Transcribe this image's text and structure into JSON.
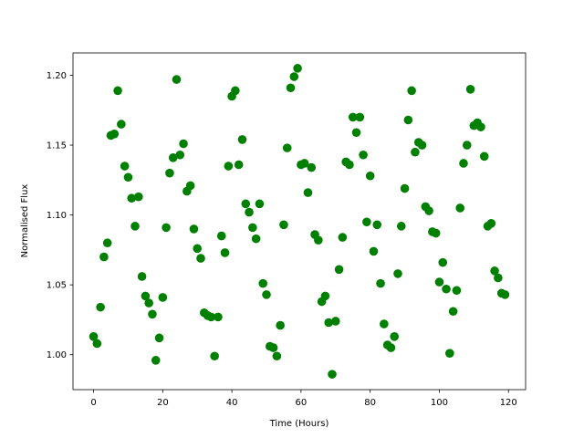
{
  "chart_data": {
    "type": "scatter",
    "x_label": "Time (Hours)",
    "y_label": "Normalised Flux",
    "color": "#008000",
    "grid": false,
    "x": [
      0,
      1,
      2,
      3,
      4,
      5,
      6,
      7,
      8,
      9,
      10,
      11,
      12,
      13,
      14,
      15,
      16,
      17,
      18,
      19,
      20,
      21,
      22,
      23,
      24,
      25,
      26,
      27,
      28,
      29,
      30,
      31,
      32,
      33,
      34,
      35,
      36,
      37,
      38,
      39,
      40,
      41,
      42,
      43,
      44,
      45,
      46,
      47,
      48,
      49,
      50,
      51,
      52,
      53,
      54,
      55,
      56,
      57,
      58,
      59,
      60,
      61,
      62,
      63,
      64,
      65,
      66,
      67,
      68,
      69,
      70,
      71,
      72,
      73,
      74,
      75,
      76,
      77,
      78,
      79,
      80,
      81,
      82,
      83,
      84,
      85,
      86,
      87,
      88,
      89,
      90,
      91,
      92,
      93,
      94,
      95,
      96,
      97,
      98,
      99,
      100,
      101,
      102,
      103,
      104,
      105,
      106,
      107,
      108,
      109,
      110,
      111,
      112,
      113,
      114,
      115,
      116,
      117,
      118,
      119
    ],
    "values": [
      1.013,
      1.008,
      1.034,
      1.07,
      1.08,
      1.157,
      1.158,
      1.189,
      1.165,
      1.135,
      1.127,
      1.112,
      1.092,
      1.113,
      1.056,
      1.042,
      1.037,
      1.029,
      0.996,
      1.012,
      1.041,
      1.091,
      1.13,
      1.141,
      1.197,
      1.143,
      1.151,
      1.117,
      1.121,
      1.09,
      1.076,
      1.069,
      1.03,
      1.028,
      1.027,
      0.999,
      1.027,
      1.085,
      1.073,
      1.135,
      1.185,
      1.189,
      1.136,
      1.154,
      1.108,
      1.102,
      1.091,
      1.083,
      1.108,
      1.051,
      1.043,
      1.006,
      1.005,
      0.999,
      1.021,
      1.093,
      1.148,
      1.191,
      1.199,
      1.205,
      1.136,
      1.137,
      1.116,
      1.134,
      1.086,
      1.082,
      1.038,
      1.042,
      1.023,
      0.986,
      1.024,
      1.061,
      1.084,
      1.138,
      1.136,
      1.17,
      1.159,
      1.17,
      1.143,
      1.095,
      1.128,
      1.074,
      1.093,
      1.051,
      1.022,
      1.007,
      1.005,
      1.013,
      1.058,
      1.092,
      1.119,
      1.168,
      1.189,
      1.145,
      1.152,
      1.15,
      1.106,
      1.103,
      1.088,
      1.087,
      1.052,
      1.066,
      1.047,
      1.001,
      1.031,
      1.046,
      1.105,
      1.137,
      1.15,
      1.19,
      1.164,
      1.166,
      1.163,
      1.142,
      1.092,
      1.094,
      1.06,
      1.055,
      1.044,
      1.043
    ],
    "xlim": [
      -5.95,
      124.95
    ],
    "ylim": [
      0.975,
      1.216
    ],
    "xticks": [
      0,
      20,
      40,
      60,
      80,
      100,
      120
    ],
    "yticks": [
      {
        "value": 1,
        "label": "1.00"
      },
      1.05,
      {
        "value": 1.1,
        "label": "1.10"
      },
      1.15,
      {
        "value": 1.2,
        "label": "1.20"
      }
    ]
  }
}
